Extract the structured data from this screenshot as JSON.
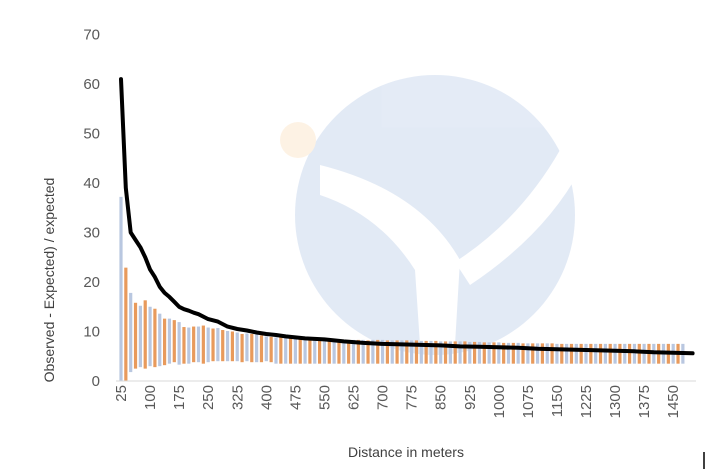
{
  "chart_data": {
    "type": "bar",
    "xlabel": "Distance in meters",
    "ylabel": "Observed - Expected) / expected",
    "ylim": [
      0,
      70
    ],
    "yticks": [
      0,
      10,
      20,
      30,
      40,
      50,
      60,
      70
    ],
    "x_start": 25,
    "x_step": 12.5,
    "x_tick_labels": [
      "25",
      "100",
      "175",
      "250",
      "325",
      "400",
      "475",
      "550",
      "625",
      "700",
      "775",
      "850",
      "925",
      "1000",
      "1075",
      "1150",
      "1225",
      "1300",
      "1375",
      "1450"
    ],
    "grid": false,
    "legend": "none",
    "bars": {
      "tops": [
        37.2,
        22.9,
        17.8,
        15.8,
        15.2,
        16.3,
        15.0,
        14.6,
        13.6,
        12.6,
        12.6,
        12.3,
        11.9,
        10.9,
        10.8,
        11.0,
        11.0,
        11.2,
        10.8,
        10.6,
        10.7,
        10.3,
        10.1,
        10.0,
        9.8,
        9.5,
        9.6,
        9.5,
        9.4,
        9.2,
        9.0,
        8.9,
        8.8,
        8.9,
        8.8,
        8.6,
        8.5,
        8.5,
        8.4,
        8.4,
        8.4,
        8.3,
        8.3,
        8.3,
        8.3,
        8.3,
        8.3,
        8.3,
        8.3,
        8.3,
        8.3,
        8.2,
        8.3,
        8.3,
        8.3,
        8.2,
        8.2,
        8.2,
        8.2,
        8.2,
        8.2,
        8.2,
        8.1,
        8.1,
        8.1,
        8.1,
        8.0,
        8.0,
        8.0,
        8.0,
        8.0,
        8.0,
        7.9,
        7.9,
        7.9,
        7.8,
        7.8,
        7.8,
        7.8,
        7.7,
        7.7,
        7.7,
        7.7,
        7.6,
        7.6,
        7.6,
        7.6,
        7.6,
        7.6,
        7.6,
        7.5,
        7.5,
        7.5,
        7.5,
        7.5,
        7.5,
        7.5,
        7.5,
        7.5,
        7.5,
        7.5,
        7.5,
        7.5,
        7.5,
        7.5,
        7.5,
        7.5,
        7.5,
        7.5,
        7.5,
        7.5,
        7.5,
        7.5,
        7.5,
        7.5,
        7.5,
        7.5
      ],
      "bottoms": [
        0,
        0,
        1.8,
        2.5,
        2.8,
        2.5,
        3.0,
        2.8,
        3.0,
        3.2,
        3.5,
        3.8,
        3.3,
        3.5,
        3.5,
        3.8,
        3.8,
        3.5,
        3.8,
        4.0,
        4.0,
        4.0,
        4.0,
        4.0,
        4.0,
        3.8,
        4.0,
        3.8,
        3.8,
        3.8,
        4.0,
        3.8,
        3.5,
        3.5,
        3.5,
        3.5,
        3.5,
        3.5,
        3.5,
        3.5,
        3.5,
        3.5,
        3.5,
        3.5,
        3.5,
        3.5,
        3.5,
        3.5,
        3.5,
        3.5,
        3.5,
        3.5,
        3.5,
        3.5,
        3.5,
        3.5,
        3.5,
        3.5,
        3.5,
        3.5,
        3.5,
        3.5,
        3.5,
        3.5,
        3.5,
        3.5,
        3.5,
        3.5,
        3.5,
        3.5,
        3.5,
        3.5,
        3.5,
        3.5,
        3.5,
        3.5,
        3.5,
        3.5,
        3.5,
        3.5,
        3.5,
        3.5,
        3.5,
        3.5,
        3.5,
        3.5,
        3.5,
        3.5,
        3.5,
        3.5,
        3.5,
        3.5,
        3.5,
        3.5,
        3.5,
        3.5,
        3.5,
        3.5,
        3.5,
        3.5,
        3.5,
        3.5,
        3.5,
        3.5,
        3.5,
        3.5,
        3.5,
        3.5,
        3.5,
        3.5,
        3.5,
        3.5,
        3.5,
        3.5,
        3.5,
        3.5,
        3.5
      ],
      "colors": [
        "#b9c7e0",
        "#e89a5c"
      ]
    },
    "line": {
      "x": [
        25,
        37.5,
        50,
        62.5,
        75,
        87.5,
        100,
        112.5,
        125,
        137.5,
        150,
        162.5,
        175,
        187.5,
        200,
        212.5,
        225,
        250,
        275,
        300,
        325,
        350,
        375,
        400,
        425,
        450,
        475,
        500,
        550,
        600,
        650,
        700,
        750,
        800,
        850,
        900,
        950,
        1000,
        1050,
        1100,
        1150,
        1200,
        1250,
        1300,
        1350,
        1400,
        1450,
        1500
      ],
      "y": [
        61,
        39,
        30,
        28.5,
        27,
        25,
        22.5,
        21,
        19,
        17.8,
        17,
        16,
        15,
        14.5,
        14.2,
        13.8,
        13.5,
        12.5,
        12,
        11,
        10.5,
        10.2,
        9.8,
        9.5,
        9.3,
        9.0,
        8.8,
        8.6,
        8.4,
        8.0,
        7.7,
        7.5,
        7.4,
        7.3,
        7.2,
        7.0,
        6.9,
        6.8,
        6.7,
        6.5,
        6.4,
        6.3,
        6.2,
        6.1,
        6.0,
        5.8,
        5.7,
        5.6
      ],
      "color": "#000000"
    }
  }
}
